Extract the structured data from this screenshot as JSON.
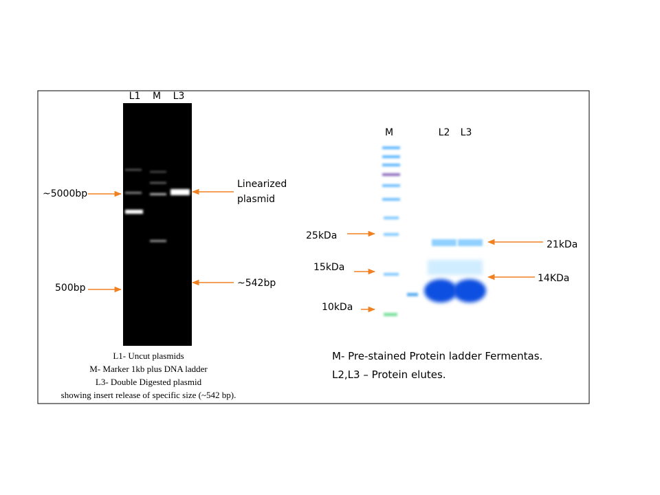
{
  "dna_gel": {
    "lanes": [
      "L1",
      "M",
      "L3"
    ],
    "left_labels": [
      "~5000bp",
      "500bp"
    ],
    "right_labels": [
      "Linearized",
      "plasmid",
      "~542bp"
    ],
    "caption": [
      "L1- Uncut plasmids",
      "M- Marker 1kb plus DNA ladder",
      "L3- Double Digested plasmid",
      "showing insert release of specific size (~542 bp)."
    ]
  },
  "protein_gel": {
    "lanes": [
      "M",
      "L2",
      "L3"
    ],
    "left_labels": [
      "25kDa",
      "15kDa",
      "10kDa"
    ],
    "right_labels": [
      "21kDa",
      "14KDa"
    ],
    "caption": [
      "M- Pre-stained Protein ladder Fermentas.",
      "L2,L3 – Protein elutes."
    ]
  }
}
